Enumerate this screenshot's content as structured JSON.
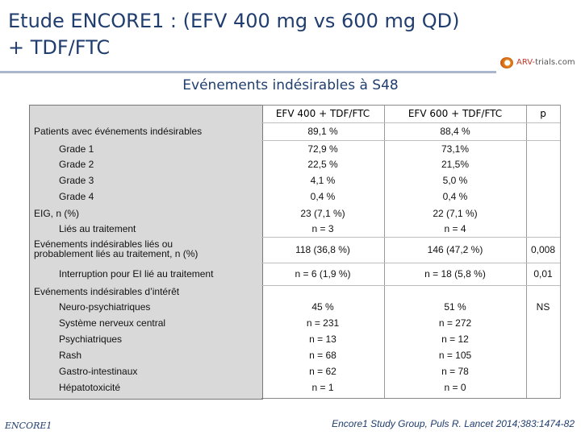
{
  "slide": {
    "title_line1": "Etude ENCORE1 : (EFV 400 mg vs 600 mg QD)",
    "title_line2": "+ TDF/FTC",
    "subtitle": "Evénements indésirables à S48",
    "logo_prefix": "ARV-",
    "logo_suffix": "trials.com",
    "footer_logo": "ENCORE1",
    "citation": "Encore1 Study Group, Puls R. Lancet 2014;383:1474-82"
  },
  "table": {
    "headers": [
      "EFV 400 + TDF/FTC",
      "EFV 600 + TDF/FTC",
      "p"
    ],
    "rows": [
      {
        "label": "Patients avec événements indésirables",
        "v1": "89,1 %",
        "v2": "88,4 %",
        "p": ""
      },
      {
        "label": "Grade 1",
        "v1": "72,9 %",
        "v2": "73,1%",
        "p": ""
      },
      {
        "label": "Grade 2",
        "v1": "22,5 %",
        "v2": "21,5%",
        "p": ""
      },
      {
        "label": "Grade 3",
        "v1": "4,1 %",
        "v2": "5,0 %",
        "p": ""
      },
      {
        "label": "Grade 4",
        "v1": "0,4 %",
        "v2": "0,4 %",
        "p": ""
      },
      {
        "label": "EIG, n (%)",
        "v1": "23 (7,1 %)",
        "v2": "22 (7,1 %)",
        "p": ""
      },
      {
        "label": "Liés au traitement",
        "v1": "n = 3",
        "v2": "n = 4",
        "p": ""
      },
      {
        "label_line1": "Evénements indésirables liés ou",
        "label_line2": "probablement liés au traitement, n (%)",
        "v1": "118 (36,8 %)",
        "v2": "146 (47,2 %)",
        "p": "0,008"
      },
      {
        "label": "Interruption pour EI lié au traitement",
        "v1": "n = 6 (1,9 %)",
        "v2": "n = 18 (5,8 %)",
        "p": "0,01"
      },
      {
        "label": "Evénements indésirables d’intérêt",
        "v1": "",
        "v2": "",
        "p": ""
      },
      {
        "label": "Neuro-psychiatriques",
        "v1": "45 %",
        "v2": "51 %",
        "p": "NS"
      },
      {
        "label": "Système nerveux central",
        "v1": "n = 231",
        "v2": "n = 272",
        "p": ""
      },
      {
        "label": "Psychiatriques",
        "v1": "n = 13",
        "v2": "n = 12",
        "p": ""
      },
      {
        "label": "Rash",
        "v1": "n = 68",
        "v2": "n = 105",
        "p": ""
      },
      {
        "label": "Gastro-intestinaux",
        "v1": "n = 62",
        "v2": "n = 78",
        "p": ""
      },
      {
        "label": "Hépatotoxicité",
        "v1": "n = 1",
        "v2": "n = 0",
        "p": ""
      }
    ]
  }
}
